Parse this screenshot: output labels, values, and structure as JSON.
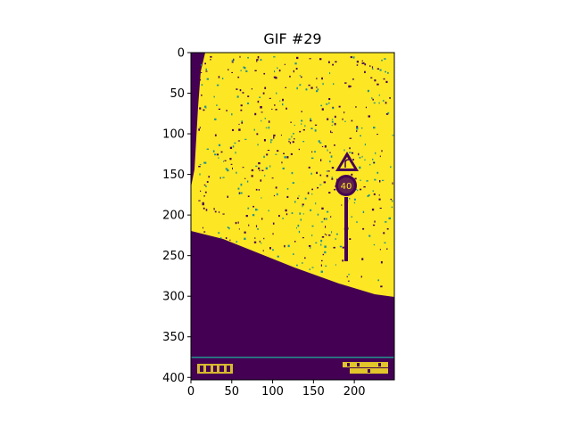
{
  "figure": {
    "title": "GIF #29"
  },
  "axes": {
    "x_ticks": [
      "0",
      "50",
      "100",
      "150",
      "200"
    ],
    "y_ticks": [
      "0",
      "50",
      "100",
      "150",
      "200",
      "250",
      "300",
      "350",
      "400"
    ],
    "x_range": [
      0,
      249
    ],
    "y_range": [
      403,
      0
    ]
  },
  "image": {
    "colormap": "viridis",
    "colors": {
      "low": "#440154",
      "mid": "#21918c",
      "high": "#fde725"
    },
    "sign_text": "40"
  }
}
